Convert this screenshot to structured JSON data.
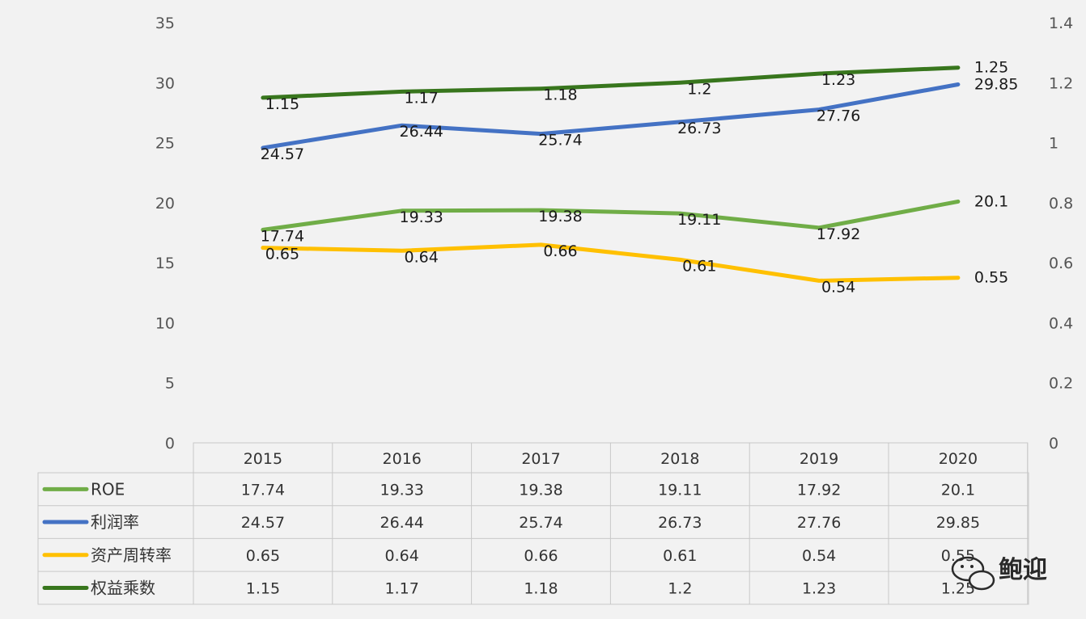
{
  "chart_data": {
    "type": "line",
    "title": "",
    "x": [
      "2015",
      "2016",
      "2017",
      "2018",
      "2019",
      "2020"
    ],
    "y_left": {
      "ticks": [
        "0",
        "5",
        "10",
        "15",
        "20",
        "25",
        "30",
        "35"
      ],
      "range": [
        0,
        35
      ]
    },
    "y_right": {
      "ticks": [
        "0",
        "0.2",
        "0.4",
        "0.6",
        "0.8",
        "1",
        "1.2",
        "1.4"
      ],
      "range": [
        0,
        1.4
      ]
    },
    "grid": false,
    "legend": "data-table-bottom",
    "series": [
      {
        "name": "ROE",
        "axis": "left",
        "color": "#70ad47",
        "values": [
          17.74,
          19.33,
          19.38,
          19.11,
          17.92,
          20.1
        ],
        "labels": [
          "17.74",
          "19.33",
          "19.38",
          "19.11",
          "17.92",
          "20.1"
        ]
      },
      {
        "name": "利润率",
        "axis": "left",
        "color": "#4472c4",
        "values": [
          24.57,
          26.44,
          25.74,
          26.73,
          27.76,
          29.85
        ],
        "labels": [
          "24.57",
          "26.44",
          "25.74",
          "26.73",
          "27.76",
          "29.85"
        ]
      },
      {
        "name": "资产周转率",
        "axis": "right",
        "color": "#ffc000",
        "values": [
          0.65,
          0.64,
          0.66,
          0.61,
          0.54,
          0.55
        ],
        "labels": [
          "0.65",
          "0.64",
          "0.66",
          "0.61",
          "0.54",
          "0.55"
        ]
      },
      {
        "name": "权益乘数",
        "axis": "right",
        "color": "#38761d",
        "values": [
          1.15,
          1.17,
          1.18,
          1.2,
          1.23,
          1.25
        ],
        "labels": [
          "1.15",
          "1.17",
          "1.18",
          "1.2",
          "1.23",
          "1.25"
        ]
      }
    ]
  },
  "watermark": {
    "text": "鲍迎",
    "icon": "wechat-bubble-icon"
  }
}
